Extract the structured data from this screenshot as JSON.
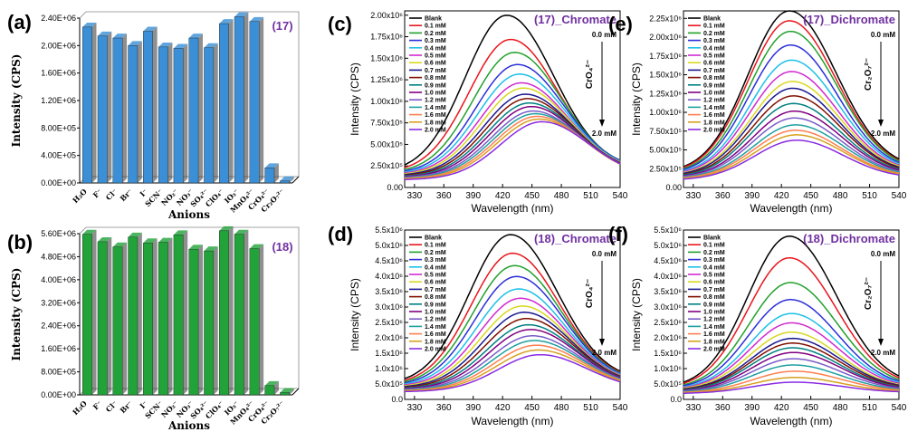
{
  "legend": [
    "Blank",
    "0.1 mM",
    "0.2 mM",
    "0.3 mM",
    "0.4 mM",
    "0.5 mM",
    "0.6 mM",
    "0.7 mM",
    "0.8 mM",
    "0.9 mM",
    "1.0 mM",
    "1.2 mM",
    "1.4 mM",
    "1.6 mM",
    "1.8 mM",
    "2.0 mM"
  ],
  "legend_colors": [
    "#000000",
    "#e8161c",
    "#22a02c",
    "#2b2fd8",
    "#1cc0e8",
    "#d02ad0",
    "#d8d820",
    "#1a1a90",
    "#801000",
    "#008080",
    "#800080",
    "#7a5cc8",
    "#20a0a0",
    "#ff7f50",
    "#d8a020",
    "#8a2be2"
  ],
  "anion_labels": [
    "H₂O",
    "F⁻",
    "Cl⁻",
    "Br⁻",
    "I⁻",
    "SCN⁻",
    "NO₂⁻",
    "NO₃⁻",
    "SO₄²⁻",
    "ClO₄⁻",
    "IO₃⁻",
    "MnO₄²⁻",
    "CrO₄²⁻",
    "Cr₂O₇²⁻"
  ],
  "chart_data": [
    {
      "panel": "(a)",
      "type": "bar",
      "title": "(17)",
      "xlabel": "Anions",
      "ylabel": "Intensity (CPS)",
      "categories": [
        "H₂O",
        "F⁻",
        "Cl⁻",
        "Br⁻",
        "I⁻",
        "SCN⁻",
        "NO₂⁻",
        "NO₃⁻",
        "SO₄²⁻",
        "ClO₄⁻",
        "IO₃⁻",
        "MnO₄²⁻",
        "CrO₄²⁻",
        "Cr₂O₇²⁻"
      ],
      "values": [
        2270000,
        2140000,
        2110000,
        2000000,
        2210000,
        1980000,
        1960000,
        2110000,
        1970000,
        2320000,
        2420000,
        2350000,
        220000,
        30000
      ],
      "ylim": [
        0,
        2400000
      ],
      "yticks": [
        "0.00E+00",
        "4.00E+05",
        "8.00E+05",
        "1.20E+06",
        "1.60E+06",
        "2.00E+06",
        "2.40E+06"
      ],
      "color": "#3a8fd6"
    },
    {
      "panel": "(b)",
      "type": "bar",
      "title": "(18)",
      "xlabel": "Anions",
      "ylabel": "Intensity (CPS)",
      "categories": [
        "H₂O",
        "F⁻",
        "Cl⁻",
        "Br⁻",
        "I⁻",
        "SCN⁻",
        "NO₂⁻",
        "NO₃⁻",
        "SO₄²⁻",
        "ClO₄⁻",
        "IO₃⁻",
        "MnO₄²⁻",
        "CrO₄²⁻",
        "Cr₂O₇²⁻"
      ],
      "values": [
        5580000,
        5320000,
        5140000,
        5480000,
        5280000,
        5300000,
        5560000,
        5060000,
        5000000,
        5700000,
        5580000,
        5080000,
        320000,
        80000
      ],
      "ylim": [
        0,
        5600000
      ],
      "yticks": [
        "0.00E+00",
        "8.00E+05",
        "1.60E+06",
        "2.40E+06",
        "3.20E+06",
        "4.00E+06",
        "4.80E+06",
        "5.60E+06"
      ],
      "color": "#21a33a"
    },
    {
      "panel": "(c)",
      "type": "line",
      "title": "(17)_Chromate",
      "xlabel": "Wavelength (nm)",
      "ylabel": "Intensity (CPS)",
      "ion": "CrO₄²⁻",
      "arrow_start": "0.0 mM",
      "arrow_end": "2.0 mM",
      "xlim": [
        320,
        540
      ],
      "ylim": [
        0,
        2050000
      ],
      "xticks": [
        330,
        360,
        390,
        420,
        450,
        480,
        510,
        540
      ],
      "yticks": [
        0,
        250000,
        500000,
        750000,
        1000000,
        1250000,
        1500000,
        1750000,
        2000000
      ],
      "ytick_labels": [
        "0.00",
        "2.50x10⁵",
        "5.00x10⁵",
        "7.50x10⁵",
        "1.00x10⁶",
        "1.25x10⁶",
        "1.50x10⁶",
        "1.75x10⁶",
        "2.00x10⁶"
      ],
      "peaks": [
        2000000,
        1720000,
        1570000,
        1430000,
        1320000,
        1220000,
        1160000,
        1090000,
        1040000,
        990000,
        950000,
        900000,
        870000,
        840000,
        810000,
        780000
      ],
      "peak_x": [
        424,
        428,
        432,
        435,
        437,
        439,
        441,
        443,
        445,
        447,
        449,
        451,
        453,
        455,
        457,
        460
      ],
      "baseline_start": 180000,
      "baseline_end": 220000
    },
    {
      "panel": "(d)",
      "type": "line",
      "title": "(18)_Chromate",
      "xlabel": "Wavelength (nm)",
      "ylabel": "Intensity (CPS)",
      "ion": "CrO₄²⁻",
      "arrow_start": "0.0 mM",
      "arrow_end": "2.0 mM",
      "xlim": [
        320,
        540
      ],
      "ylim": [
        0,
        5500000
      ],
      "xticks": [
        330,
        360,
        390,
        420,
        450,
        480,
        510,
        540
      ],
      "yticks": [
        0,
        500000,
        1000000,
        1500000,
        2000000,
        2500000,
        3000000,
        3500000,
        4000000,
        4500000,
        5000000,
        5500000
      ],
      "ytick_labels": [
        "0.0",
        "5.0x10⁵",
        "1.0x10⁶",
        "1.5x10⁶",
        "2.0x10⁶",
        "2.5x10⁶",
        "3.0x10⁶",
        "3.5x10⁶",
        "4.0x10⁶",
        "4.5x10⁶",
        "5.0x10⁶",
        "5.5x10⁶"
      ],
      "peaks": [
        5350000,
        4750000,
        4350000,
        4000000,
        3600000,
        3300000,
        3050000,
        2850000,
        2650000,
        2450000,
        2300000,
        2100000,
        1950000,
        1800000,
        1650000,
        1500000
      ],
      "peak_x": [
        428,
        430,
        432,
        434,
        436,
        438,
        440,
        442,
        444,
        446,
        448,
        450,
        452,
        454,
        456,
        458
      ],
      "baseline_start": 500000,
      "baseline_end": 600000
    },
    {
      "panel": "(e)",
      "type": "line",
      "title": "(17)_Dichromate",
      "xlabel": "Wavelength (nm)",
      "ylabel": "Intensity (CPS)",
      "ion": "Cr₂O₇²⁻",
      "arrow_start": "0.0 mM",
      "arrow_end": "2.0 mM",
      "xlim": [
        320,
        540
      ],
      "ylim": [
        0,
        2350000
      ],
      "xticks": [
        330,
        360,
        390,
        420,
        450,
        480,
        510,
        540
      ],
      "yticks": [
        0,
        250000,
        500000,
        750000,
        1000000,
        1250000,
        1500000,
        1750000,
        2000000,
        2250000
      ],
      "ytick_labels": [
        "0.00",
        "2.50x10⁵",
        "5.00x10⁵",
        "7.50x10⁵",
        "1.00x10⁶",
        "1.25x10⁶",
        "1.50x10⁶",
        "1.75x10⁶",
        "2.00x10⁶",
        "2.25x10⁶"
      ],
      "peaks": [
        2350000,
        2220000,
        2080000,
        1900000,
        1700000,
        1550000,
        1420000,
        1330000,
        1230000,
        1130000,
        1030000,
        940000,
        850000,
        780000,
        720000,
        650000
      ],
      "peak_x": [
        428,
        428,
        429,
        429,
        430,
        430,
        431,
        431,
        432,
        432,
        433,
        433,
        434,
        434,
        435,
        435
      ],
      "baseline_start": 200000,
      "baseline_end": 240000
    },
    {
      "panel": "(f)",
      "type": "line",
      "title": "(18)_Dichromate",
      "xlabel": "Wavelength (nm)",
      "ylabel": "Intensity (CPS)",
      "ion": "Cr₂O₇²⁻",
      "arrow_start": "0.0 mM",
      "arrow_end": "2.0 mM",
      "xlim": [
        320,
        540
      ],
      "ylim": [
        0,
        5500000
      ],
      "xticks": [
        330,
        360,
        390,
        420,
        450,
        480,
        510,
        540
      ],
      "yticks": [
        0,
        500000,
        1000000,
        1500000,
        2000000,
        2500000,
        3000000,
        3500000,
        4000000,
        4500000,
        5000000,
        5500000
      ],
      "ytick_labels": [
        "0.0",
        "5.0x10⁵",
        "1.0x10⁶",
        "1.5x10⁶",
        "2.0x10⁶",
        "2.5x10⁶",
        "3.0x10⁶",
        "3.5x10⁶",
        "4.0x10⁶",
        "4.5x10⁶",
        "5.0x10⁶",
        "5.5x10⁶"
      ],
      "peaks": [
        5300000,
        4600000,
        3800000,
        3250000,
        2800000,
        2500000,
        2200000,
        2000000,
        1850000,
        1700000,
        1550000,
        1350000,
        1150000,
        950000,
        750000,
        600000
      ],
      "peak_x": [
        428,
        428,
        429,
        429,
        430,
        430,
        430,
        431,
        431,
        431,
        432,
        432,
        432,
        433,
        433,
        433
      ],
      "baseline_start": 380000,
      "baseline_end": 440000
    }
  ]
}
